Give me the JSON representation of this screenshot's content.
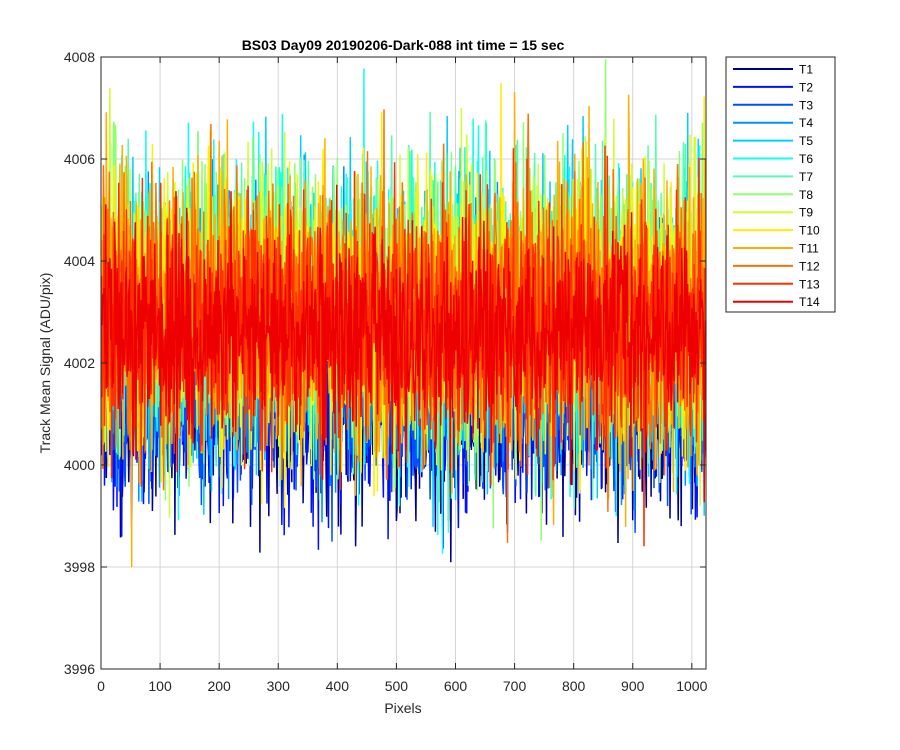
{
  "chart_data": {
    "type": "line",
    "title": "BS03 Day09 20190206-Dark-088 int time = 15 sec",
    "xlabel": "Pixels",
    "ylabel": "Track Mean Signal (ADU/pix)",
    "xlim": [
      0,
      1024
    ],
    "ylim": [
      3996,
      4008
    ],
    "xticks": [
      0,
      100,
      200,
      300,
      400,
      500,
      600,
      700,
      800,
      900,
      1000
    ],
    "yticks": [
      3996,
      3998,
      4000,
      4002,
      4004,
      4006,
      4008
    ],
    "grid": true,
    "legend_position": "outside-top-right",
    "x": {
      "start": 1,
      "end": 1024,
      "step": 1
    },
    "series": [
      {
        "name": "T1",
        "color": "#00008f",
        "mean": 4001.1,
        "spread": 1.0,
        "seed": 11
      },
      {
        "name": "T2",
        "color": "#0010ff",
        "mean": 4001.3,
        "spread": 1.0,
        "seed": 23
      },
      {
        "name": "T3",
        "color": "#0050ff",
        "mean": 4001.6,
        "spread": 1.0,
        "seed": 37
      },
      {
        "name": "T4",
        "color": "#0090ff",
        "mean": 4002.6,
        "spread": 1.3,
        "seed": 41
      },
      {
        "name": "T5",
        "color": "#00d0ff",
        "mean": 4003.0,
        "spread": 1.4,
        "seed": 53
      },
      {
        "name": "T6",
        "color": "#10ffef",
        "mean": 4003.0,
        "spread": 1.4,
        "seed": 67
      },
      {
        "name": "T7",
        "color": "#50ffaf",
        "mean": 4003.1,
        "spread": 1.4,
        "seed": 71
      },
      {
        "name": "T8",
        "color": "#90ff6f",
        "mean": 4003.2,
        "spread": 1.4,
        "seed": 83
      },
      {
        "name": "T9",
        "color": "#cfff30",
        "mean": 4003.1,
        "spread": 1.4,
        "seed": 97
      },
      {
        "name": "T10",
        "color": "#ffef00",
        "mean": 4003.0,
        "spread": 1.4,
        "seed": 101
      },
      {
        "name": "T11",
        "color": "#ffaf00",
        "mean": 4002.9,
        "spread": 1.4,
        "seed": 113
      },
      {
        "name": "T12",
        "color": "#ff7000",
        "mean": 4003.0,
        "spread": 1.3,
        "seed": 127
      },
      {
        "name": "T13",
        "color": "#ff3000",
        "mean": 4002.7,
        "spread": 1.2,
        "seed": 131
      },
      {
        "name": "T14",
        "color": "#ef0000",
        "mean": 4002.5,
        "spread": 1.0,
        "seed": 149
      }
    ]
  }
}
